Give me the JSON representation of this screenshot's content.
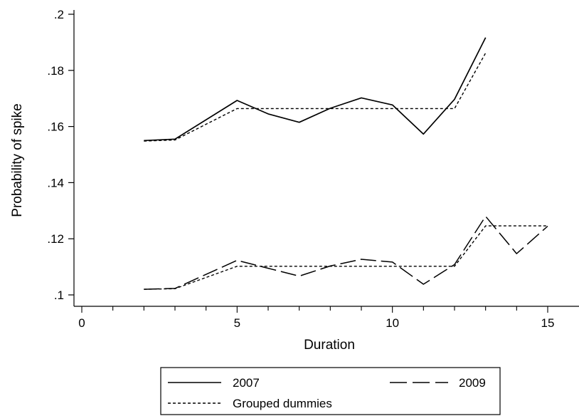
{
  "chart_data": {
    "type": "line",
    "title": "",
    "xlabel": "Duration",
    "ylabel": "Probability of spike",
    "xlim": [
      0,
      15
    ],
    "ylim": [
      0.1,
      0.2
    ],
    "x_ticks": [
      0,
      5,
      10,
      15
    ],
    "x_tick_labels": [
      "0",
      "5",
      "10",
      "15"
    ],
    "y_ticks": [
      0.1,
      0.12,
      0.14,
      0.16,
      0.18,
      0.2
    ],
    "y_tick_labels": [
      ".1",
      ".12",
      ".14",
      ".16",
      ".18",
      ".2"
    ],
    "grid": false,
    "legend_position": "bottom",
    "series": [
      {
        "name": "2007",
        "style": "solid",
        "x": [
          2,
          3,
          5,
          6,
          7,
          8,
          9,
          10,
          11,
          12,
          13
        ],
        "y": [
          0.155,
          0.1555,
          0.1693,
          0.1645,
          0.1615,
          0.1665,
          0.1702,
          0.1677,
          0.1573,
          0.1697,
          0.1917
        ]
      },
      {
        "name": "",
        "style": "dotted",
        "x": [
          2,
          3,
          5,
          6,
          7,
          8,
          9,
          10,
          11,
          12,
          13
        ],
        "y": [
          0.1548,
          0.1552,
          0.1664,
          0.1664,
          0.1664,
          0.1664,
          0.1664,
          0.1664,
          0.1664,
          0.1664,
          0.1862
        ]
      },
      {
        "name": "2009",
        "style": "dashed",
        "x": [
          2,
          3,
          5,
          6,
          7,
          8,
          9,
          10,
          11,
          12,
          13,
          14,
          15
        ],
        "y": [
          0.102,
          0.1023,
          0.1123,
          0.1095,
          0.1067,
          0.1103,
          0.1127,
          0.1117,
          0.1038,
          0.1108,
          0.128,
          0.1147,
          0.1245
        ]
      },
      {
        "name": "Grouped dummies",
        "style": "dotted",
        "x": [
          2,
          3,
          5,
          6,
          7,
          8,
          9,
          10,
          11,
          12,
          13,
          14,
          15
        ],
        "y": [
          0.102,
          0.1022,
          0.1102,
          0.1102,
          0.1102,
          0.1102,
          0.1102,
          0.1102,
          0.1102,
          0.1102,
          0.1246,
          0.1246,
          0.1246
        ]
      }
    ]
  },
  "legend": {
    "entries": [
      {
        "label": "2007",
        "style": "solid"
      },
      {
        "label": "2009",
        "style": "dashed"
      },
      {
        "label": "Grouped dummies",
        "style": "dotted"
      }
    ]
  },
  "colors": {
    "line": "#000000",
    "background": "#ffffff"
  }
}
